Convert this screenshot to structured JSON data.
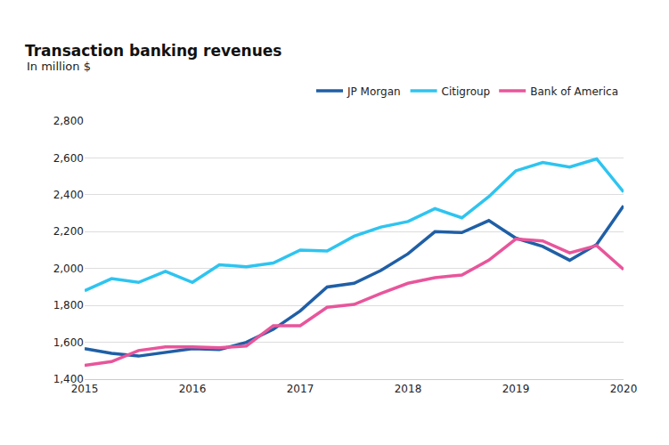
{
  "chart_data": {
    "type": "line",
    "title": "Transaction banking revenues",
    "subtitle": "In million $",
    "categories": [
      "2015",
      null,
      null,
      null,
      "2016",
      null,
      null,
      null,
      "2017",
      null,
      null,
      null,
      "2018",
      null,
      null,
      null,
      "2019",
      null,
      null,
      null,
      "2020"
    ],
    "series": [
      {
        "name": "JP Morgan",
        "color": "#1f5fa6",
        "values": [
          1565,
          1540,
          1525,
          1545,
          1565,
          1560,
          1600,
          1670,
          1770,
          1900,
          1920,
          1990,
          2080,
          2200,
          2195,
          2260,
          2165,
          2120,
          2045,
          2130,
          2340
        ]
      },
      {
        "name": "Citigroup",
        "color": "#2ec4f0",
        "values": [
          1880,
          1945,
          1925,
          1985,
          1925,
          2020,
          2010,
          2030,
          2100,
          2095,
          2175,
          2225,
          2255,
          2325,
          2275,
          2390,
          2530,
          2575,
          2550,
          2595,
          2415
        ]
      },
      {
        "name": "Bank of America",
        "color": "#e8559b",
        "values": [
          1475,
          1495,
          1555,
          1575,
          1575,
          1570,
          1580,
          1690,
          1690,
          1790,
          1805,
          1865,
          1920,
          1950,
          1965,
          2045,
          2160,
          2150,
          2085,
          2125,
          1995
        ]
      }
    ],
    "ylim": [
      1400,
      2800
    ],
    "yticks": [
      {
        "value": 1400,
        "label": "1,400"
      },
      {
        "value": 1600,
        "label": "1,600"
      },
      {
        "value": 1800,
        "label": "1,800"
      },
      {
        "value": 2000,
        "label": "2,000"
      },
      {
        "value": 2200,
        "label": "2,200"
      },
      {
        "value": 2400,
        "label": "2,400"
      },
      {
        "value": 2600,
        "label": "2,600"
      },
      {
        "value": 2800,
        "label": "2,800"
      }
    ],
    "grid": true,
    "legend": "top-right"
  }
}
